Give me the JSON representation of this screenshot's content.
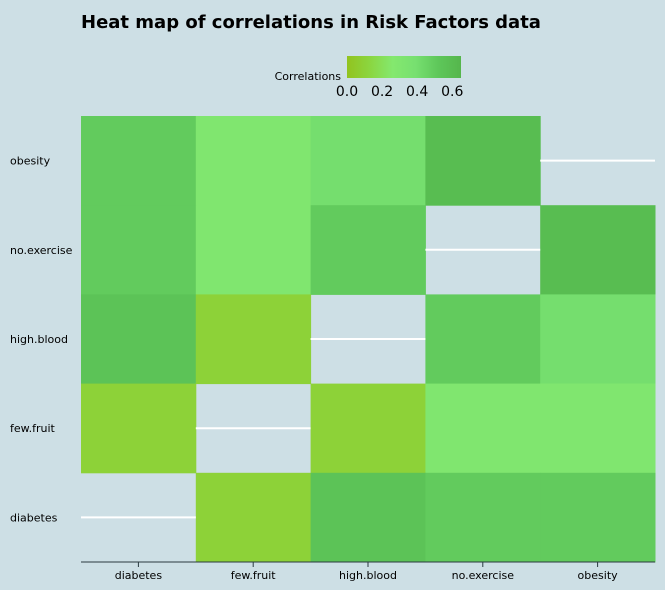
{
  "chart_data": {
    "type": "heatmap",
    "title": "Heat map of correlations in Risk Factors data",
    "x_categories": [
      "diabetes",
      "few.fruit",
      "high.blood",
      "no.exercise",
      "obesity"
    ],
    "y_categories": [
      "obesity",
      "no.exercise",
      "high.blood",
      "few.fruit",
      "diabetes"
    ],
    "values": [
      [
        0.5,
        0.3,
        0.4,
        0.6,
        null
      ],
      [
        0.5,
        0.3,
        0.5,
        null,
        0.6
      ],
      [
        0.55,
        0.1,
        null,
        0.5,
        0.4
      ],
      [
        0.1,
        null,
        0.1,
        0.3,
        0.3
      ],
      [
        null,
        0.1,
        0.55,
        0.5,
        0.5
      ]
    ],
    "colorscale": [
      "#92c31f",
      "#8bd640",
      "#84e86e",
      "#77e070",
      "#5ec75a",
      "#55b64c"
    ],
    "legend": {
      "title": "Correlations",
      "ticks": [
        "0.0",
        "0.2",
        "0.4",
        "0.6"
      ],
      "range": [
        0,
        0.65
      ],
      "position": "top"
    },
    "diagonal_marker_color": "#ffffff",
    "grid": false
  }
}
